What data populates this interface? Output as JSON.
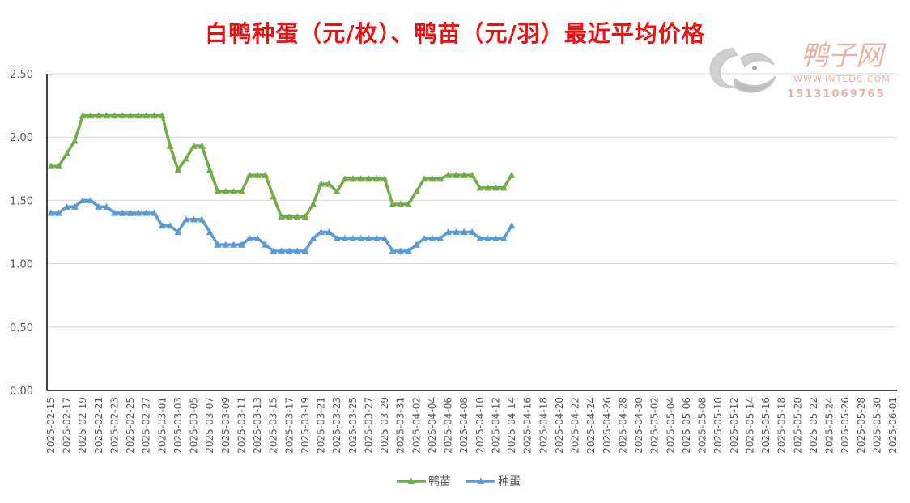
{
  "chart_data": {
    "type": "line",
    "title": "白鸭种蛋（元/枚）、鸭苗（元/羽）最近平均价格",
    "xlabel": "",
    "ylabel": "",
    "ylim": [
      0,
      2.5
    ],
    "y_ticks": [
      "0.00",
      "0.50",
      "1.00",
      "1.50",
      "2.00",
      "2.50"
    ],
    "grid": true,
    "legend_position": "bottom",
    "x_tick_labels": [
      "2025-02-15",
      "2025-02-17",
      "2025-02-19",
      "2025-02-21",
      "2025-02-23",
      "2025-02-25",
      "2025-02-27",
      "2025-03-01",
      "2025-03-03",
      "2025-03-05",
      "2025-03-07",
      "2025-03-09",
      "2025-03-11",
      "2025-03-13",
      "2025-03-15",
      "2025-03-17",
      "2025-03-19",
      "2025-03-21",
      "2025-03-23",
      "2025-03-25",
      "2025-03-27",
      "2025-03-29",
      "2025-03-31",
      "2025-04-02",
      "2025-04-04",
      "2025-04-06",
      "2025-04-08",
      "2025-04-10",
      "2025-04-12",
      "2025-04-14",
      "2025-04-16",
      "2025-04-18",
      "2025-04-20",
      "2025-04-22",
      "2025-04-24",
      "2025-04-26",
      "2025-04-28",
      "2025-04-30",
      "2025-05-02",
      "2025-05-04",
      "2025-05-06",
      "2025-05-08",
      "2025-05-10",
      "2025-05-12",
      "2025-05-14",
      "2025-05-16",
      "2025-05-18",
      "2025-05-20",
      "2025-05-22",
      "2025-05-24",
      "2025-05-26",
      "2025-05-28",
      "2025-05-30",
      "2025-06-01"
    ],
    "x": [
      "2025-02-15",
      "2025-02-16",
      "2025-02-17",
      "2025-02-18",
      "2025-02-19",
      "2025-02-20",
      "2025-02-21",
      "2025-02-22",
      "2025-02-23",
      "2025-02-24",
      "2025-02-25",
      "2025-02-26",
      "2025-02-27",
      "2025-02-28",
      "2025-03-01",
      "2025-03-02",
      "2025-03-03",
      "2025-03-04",
      "2025-03-05",
      "2025-03-06",
      "2025-03-07",
      "2025-03-08",
      "2025-03-09",
      "2025-03-10",
      "2025-03-11",
      "2025-03-12",
      "2025-03-13",
      "2025-03-14",
      "2025-03-15",
      "2025-03-16",
      "2025-03-17",
      "2025-03-18",
      "2025-03-19",
      "2025-03-20",
      "2025-03-21",
      "2025-03-22",
      "2025-03-23",
      "2025-03-24",
      "2025-03-25",
      "2025-03-26",
      "2025-03-27",
      "2025-03-28",
      "2025-03-29",
      "2025-03-30",
      "2025-03-31",
      "2025-04-01",
      "2025-04-02",
      "2025-04-03",
      "2025-04-04",
      "2025-04-05",
      "2025-04-06",
      "2025-04-07",
      "2025-04-08",
      "2025-04-09",
      "2025-04-10",
      "2025-04-11",
      "2025-04-12",
      "2025-04-13",
      "2025-04-14"
    ],
    "series": [
      {
        "name": "鸭苗",
        "color": "#70ad47",
        "values": [
          1.77,
          1.77,
          1.87,
          1.97,
          2.17,
          2.17,
          2.17,
          2.17,
          2.17,
          2.17,
          2.17,
          2.17,
          2.17,
          2.17,
          2.17,
          1.93,
          1.74,
          1.83,
          1.93,
          1.93,
          1.74,
          1.57,
          1.57,
          1.57,
          1.57,
          1.7,
          1.7,
          1.7,
          1.53,
          1.37,
          1.37,
          1.37,
          1.37,
          1.47,
          1.63,
          1.63,
          1.57,
          1.67,
          1.67,
          1.67,
          1.67,
          1.67,
          1.67,
          1.47,
          1.47,
          1.47,
          1.57,
          1.67,
          1.67,
          1.67,
          1.7,
          1.7,
          1.7,
          1.7,
          1.6,
          1.6,
          1.6,
          1.6,
          1.7
        ]
      },
      {
        "name": "种蛋",
        "color": "#5b9bd5",
        "values": [
          1.4,
          1.4,
          1.45,
          1.45,
          1.5,
          1.5,
          1.45,
          1.45,
          1.4,
          1.4,
          1.4,
          1.4,
          1.4,
          1.4,
          1.3,
          1.3,
          1.25,
          1.35,
          1.35,
          1.35,
          1.25,
          1.15,
          1.15,
          1.15,
          1.15,
          1.2,
          1.2,
          1.15,
          1.1,
          1.1,
          1.1,
          1.1,
          1.1,
          1.2,
          1.25,
          1.25,
          1.2,
          1.2,
          1.2,
          1.2,
          1.2,
          1.2,
          1.2,
          1.1,
          1.1,
          1.1,
          1.15,
          1.2,
          1.2,
          1.2,
          1.25,
          1.25,
          1.25,
          1.25,
          1.2,
          1.2,
          1.2,
          1.2,
          1.3
        ]
      }
    ]
  },
  "watermark": {
    "brand": "鸭子网",
    "url": "WWW.INTEDC.COM",
    "phone": "15131069765",
    "color": "#e8b4a8"
  }
}
